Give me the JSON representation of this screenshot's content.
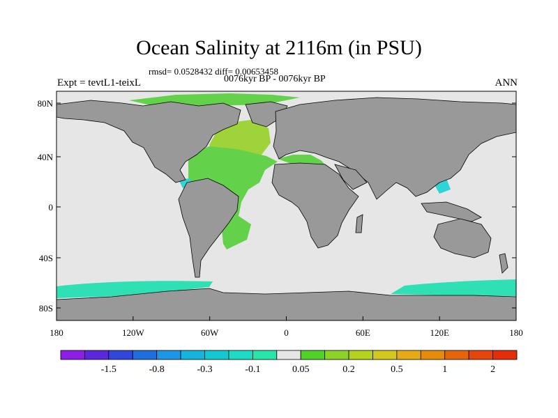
{
  "title": "Ocean Salinity at 2116m (in PSU)",
  "stats": "rmsd= 0.0528432 diff= 0.00653458",
  "period": "0076kyr BP - 0076kyr BP",
  "experiment": "Expt = tevtL1-teixL",
  "season": "ANN",
  "lat_labels": [
    "80N",
    "40N",
    "0",
    "40S",
    "80S"
  ],
  "lon_labels": [
    "180",
    "120W",
    "60W",
    "0",
    "60E",
    "120E",
    "180"
  ],
  "colors": {
    "land": "#999999",
    "ocean_neutral": "#e6e6e6",
    "atlantic_positive": "#63d14a",
    "northeast_atlantic": "#9ed43a",
    "southern_ocean": "#2fe0b4",
    "cyan_negative": "#2fd4d4",
    "blue_negative": "#2a7de0"
  },
  "colorbar": {
    "colors": [
      "#8c1ee6",
      "#5a28dc",
      "#3246dc",
      "#1e6edc",
      "#1e96e6",
      "#14b4dc",
      "#14c8d2",
      "#1edcc3",
      "#28e6aa",
      "#e6e6e6",
      "#50d228",
      "#8cd228",
      "#b4d21e",
      "#d2c81e",
      "#e6aa14",
      "#e68c0a",
      "#e6640a",
      "#e6460a",
      "#e62d0a"
    ],
    "labels": [
      "-1.5",
      "-0.8",
      "-0.3",
      "-0.1",
      "0.05",
      "0.2",
      "0.5",
      "1",
      "2"
    ]
  }
}
